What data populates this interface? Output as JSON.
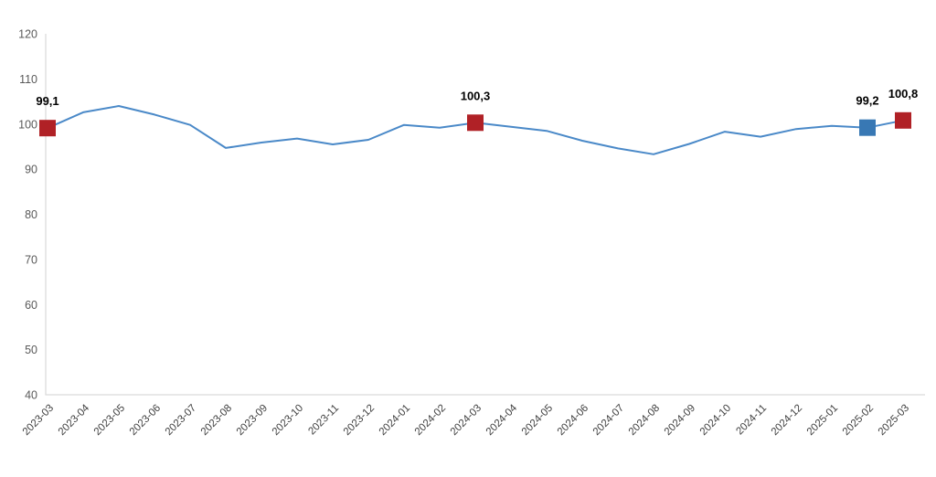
{
  "chart_data": {
    "type": "line",
    "categories": [
      "2023-03",
      "2023-04",
      "2023-05",
      "2023-06",
      "2023-07",
      "2023-08",
      "2023-09",
      "2023-10",
      "2023-11",
      "2023-12",
      "2024-01",
      "2024-02",
      "2024-03",
      "2024-04",
      "2024-05",
      "2024-06",
      "2024-07",
      "2024-08",
      "2024-09",
      "2024-10",
      "2024-11",
      "2024-12",
      "2025-01",
      "2025-02",
      "2025-03"
    ],
    "values": [
      99.1,
      102.6,
      104.0,
      102.1,
      99.8,
      94.7,
      95.9,
      96.8,
      95.5,
      96.5,
      99.8,
      99.2,
      100.3,
      99.4,
      98.5,
      96.3,
      94.6,
      93.3,
      95.6,
      98.3,
      97.2,
      98.9,
      99.6,
      99.2,
      100.8
    ],
    "ylim": [
      40,
      120
    ],
    "yticks": [
      40,
      50,
      60,
      70,
      80,
      90,
      100,
      110,
      120
    ],
    "grid": false,
    "legend_position": "none",
    "line_color": "#4a89c8",
    "axis_color": "#d9d9d9",
    "y_tick_color": "#595959",
    "x_tick_color": "#3f3f3f",
    "data_label_color": "#000000",
    "highlight_markers": [
      {
        "category": "2023-03",
        "value": 99.1,
        "label": "99,1",
        "color": "#b02126",
        "shape": "square"
      },
      {
        "category": "2024-03",
        "value": 100.3,
        "label": "100,3",
        "color": "#b02126",
        "shape": "square"
      },
      {
        "category": "2025-02",
        "value": 99.2,
        "label": "99,2",
        "color": "#3878b4",
        "shape": "square"
      },
      {
        "category": "2025-03",
        "value": 100.8,
        "label": "100,8",
        "color": "#b02126",
        "shape": "square"
      }
    ]
  }
}
